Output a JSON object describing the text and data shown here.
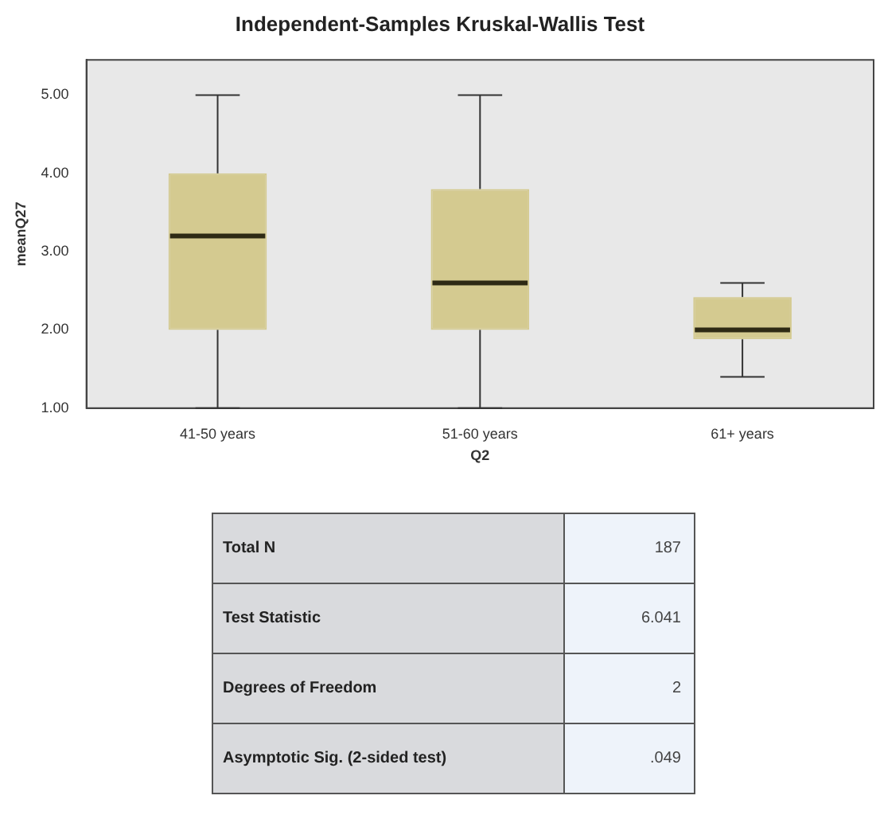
{
  "chart_data": {
    "type": "box",
    "title": "Independent-Samples Kruskal-Wallis Test",
    "xlabel": "Q2",
    "ylabel": "meanQ27",
    "categories": [
      "41-50 years",
      "51-60 years",
      "61+ years"
    ],
    "color": "#d4ca90",
    "boxes": [
      {
        "low": 1,
        "q1": 2,
        "median": 3.2,
        "q3": 4,
        "high": 5
      },
      {
        "low": 1,
        "q1": 2,
        "median": 2.6,
        "q3": 3.8,
        "high": 5
      },
      {
        "low": 1.4,
        "q1": 1.88,
        "median": 2,
        "q3": 2.42,
        "high": 2.6
      }
    ],
    "ylim": [
      1,
      5.45
    ],
    "yticks": [
      {
        "value": 1,
        "label": "1.00"
      },
      {
        "value": 2,
        "label": "2.00"
      },
      {
        "value": 3,
        "label": "3.00"
      },
      {
        "value": 4,
        "label": "4.00"
      },
      {
        "value": 5,
        "label": "5.00"
      }
    ],
    "annotations": [
      "Total N",
      "187",
      "Test Statistic",
      "6.041",
      "Degrees of Freedom",
      "2",
      "Asymptotic Sig. (2-sided test)",
      ".049"
    ]
  }
}
